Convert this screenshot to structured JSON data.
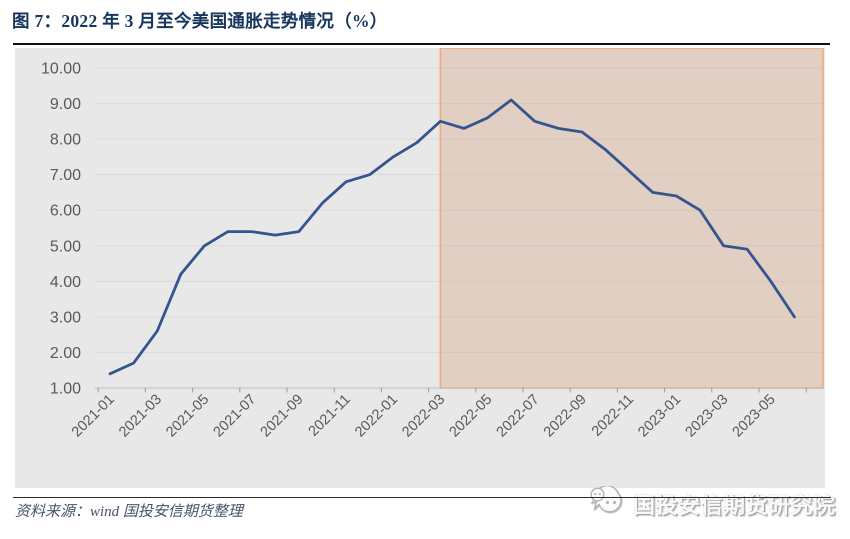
{
  "header": {
    "title": "图 7：2022 年 3 月至今美国通胀走势情况（%）"
  },
  "footer": {
    "source_note": "资料来源：wind 国投安信期货整理",
    "brand_name": "国投安信期货研究院",
    "brand_icon": "chat-bubbles-icon"
  },
  "colors": {
    "page_bg": "#ffffff",
    "title_text": "#17365d",
    "plot_bg": "#e8e8e8",
    "gridline": "#dbdbdb",
    "axis_line": "#c0c0c0",
    "tick": "#9a9a9a",
    "axis_label": "#595959",
    "line": "#35558f",
    "highlight_fill": "rgba(210,150,112,0.30)",
    "highlight_border": "#f0a878"
  },
  "chart_data": {
    "type": "line",
    "title": "图 7：2022 年 3 月至今美国通胀走势情况（%）",
    "xlabel": "",
    "ylabel": "",
    "ylim": [
      1.0,
      10.0
    ],
    "y_tick_step": 1.0,
    "y_tick_labels": [
      "1.00",
      "2.00",
      "3.00",
      "4.00",
      "5.00",
      "6.00",
      "7.00",
      "8.00",
      "9.00",
      "10.00"
    ],
    "grid": "horizontal",
    "legend": "none",
    "x": [
      "2021-01",
      "2021-02",
      "2021-03",
      "2021-04",
      "2021-05",
      "2021-06",
      "2021-07",
      "2021-08",
      "2021-09",
      "2021-10",
      "2021-11",
      "2021-12",
      "2022-01",
      "2022-02",
      "2022-03",
      "2022-04",
      "2022-05",
      "2022-06",
      "2022-07",
      "2022-08",
      "2022-09",
      "2022-10",
      "2022-11",
      "2022-12",
      "2023-01",
      "2023-02",
      "2023-03",
      "2023-04",
      "2023-05",
      "2023-06"
    ],
    "values": [
      1.4,
      1.7,
      2.6,
      4.2,
      5.0,
      5.4,
      5.4,
      5.3,
      5.4,
      6.2,
      6.8,
      7.0,
      7.5,
      7.9,
      8.5,
      8.3,
      8.6,
      9.1,
      8.5,
      8.3,
      8.2,
      7.7,
      7.1,
      6.5,
      6.4,
      6.0,
      5.0,
      4.9,
      4.0,
      3.0
    ],
    "x_tick_labels": [
      "2021-01",
      "2021-03",
      "2021-05",
      "2021-07",
      "2021-09",
      "2021-11",
      "2022-01",
      "2022-03",
      "2022-05",
      "2022-07",
      "2022-09",
      "2022-11",
      "2023-01",
      "2023-03",
      "2023-05"
    ],
    "x_label_rotation_deg": -45,
    "highlight_region": {
      "from": "2022-03",
      "to": "end-of-plot",
      "meaning": "2022年3月至今"
    }
  }
}
